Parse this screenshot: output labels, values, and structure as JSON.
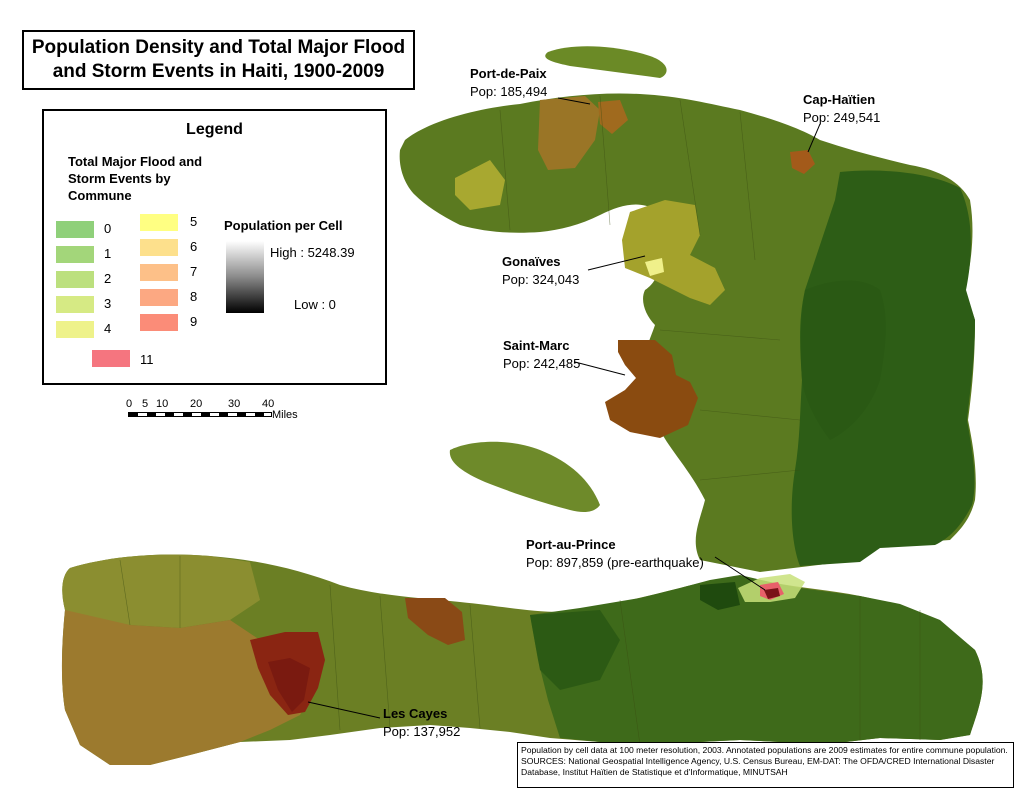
{
  "title": {
    "line1": "Population Density and Total Major Flood",
    "line2": "and Storm Events in Haiti, 1900-2009"
  },
  "legend": {
    "heading": "Legend",
    "events_title": "Total Major Flood and Storm Events by Commune",
    "event_classes": [
      {
        "label": "0",
        "color": "#8fd07a"
      },
      {
        "label": "1",
        "color": "#a3d67a"
      },
      {
        "label": "2",
        "color": "#bce07e"
      },
      {
        "label": "3",
        "color": "#d6ea84"
      },
      {
        "label": "4",
        "color": "#eef28a"
      },
      {
        "label": "5",
        "color": "#ffff82"
      },
      {
        "label": "6",
        "color": "#fde08c"
      },
      {
        "label": "7",
        "color": "#fdc088"
      },
      {
        "label": "8",
        "color": "#fca882"
      },
      {
        "label": "9",
        "color": "#fb8c78"
      },
      {
        "label": "11",
        "color": "#f5757f"
      }
    ],
    "population_title": "Population per Cell",
    "high_label": "High : 5248.39",
    "low_label": "Low : 0"
  },
  "scale_bar": {
    "ticks": [
      "0",
      "5",
      "10",
      "20",
      "30",
      "40"
    ],
    "unit": "Miles"
  },
  "cities": [
    {
      "name": "Port-de-Paix",
      "pop": "Pop: 185,494"
    },
    {
      "name": "Cap-Haïtien",
      "pop": "Pop: 249,541"
    },
    {
      "name": "Gonaïves",
      "pop": "Pop: 324,043"
    },
    {
      "name": "Saint-Marc",
      "pop": "Pop: 242,485"
    },
    {
      "name": "Port-au-Prince",
      "pop": "Pop: 897,859 (pre-earthquake)"
    },
    {
      "name": "Les Cayes",
      "pop": "Pop: 137,952"
    }
  ],
  "sources": "Population by cell data at 100 meter resolution, 2003. Annotated populations are 2009 estimates for entire commune population. SOURCES: National Geospatial Intelligence Agency, U.S. Census Bureau, EM-DAT: The OFDA/CRED International Disaster Database, Institut Haïtien de Statistique et d'Informatique, MINUTSAH",
  "colors": {
    "dark_green": "#2c5a14",
    "olive": "#667f22",
    "brown": "#8b4a12",
    "dark_red": "#7a1a10",
    "urban_pink": "#e8606a"
  }
}
